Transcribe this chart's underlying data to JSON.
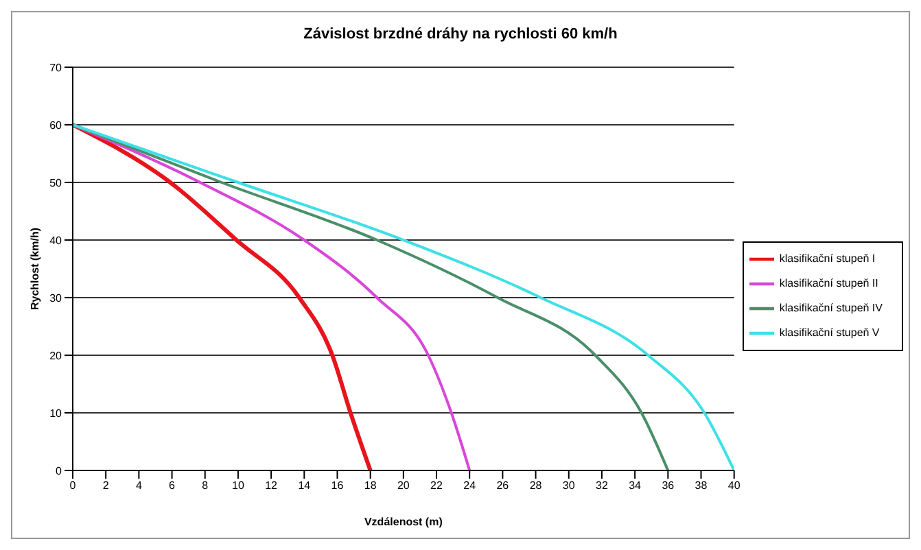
{
  "chart_data": {
    "type": "line",
    "title": "Závislost brzdné dráhy na rychlosti 60 km/h",
    "xlabel": "Vzdálenost (m)",
    "ylabel": "Rychlost (km/h)",
    "xlim": [
      0,
      40
    ],
    "xticks": [
      0,
      2,
      4,
      6,
      8,
      10,
      12,
      14,
      16,
      18,
      20,
      22,
      24,
      26,
      28,
      30,
      32,
      34,
      36,
      38,
      40
    ],
    "ylim": [
      0,
      70
    ],
    "yticks": [
      0,
      10,
      20,
      30,
      40,
      50,
      60,
      70
    ],
    "grid": "y",
    "legend": "right",
    "marker": "none",
    "line_style": "solid",
    "series": [
      {
        "name": "klasifikační stupeň I",
        "color": "#e8141c",
        "x": [
          0,
          5.9,
          9.9,
          13.7,
          15.7,
          16.8,
          18
        ],
        "values": [
          60,
          50,
          40,
          30,
          20,
          10,
          0
        ]
      },
      {
        "name": "klasifikační stupeň II",
        "color": "#d946d9",
        "x": [
          0,
          7.7,
          14,
          18.4,
          21.5,
          22.9,
          24
        ],
        "values": [
          60,
          50,
          40,
          30,
          20,
          10,
          0
        ]
      },
      {
        "name": "klasifikační stupeň IV",
        "color": "#4a8f6a",
        "x": [
          0,
          9,
          18.4,
          25.7,
          31.6,
          34.4,
          36
        ],
        "values": [
          60,
          50,
          40,
          30,
          20,
          10,
          0
        ]
      },
      {
        "name": "klasifikační stupeň V",
        "color": "#3ee0e6",
        "x": [
          0,
          10,
          20,
          28.3,
          34.8,
          38.2,
          40
        ],
        "values": [
          60,
          50,
          40,
          30,
          20,
          10,
          0
        ]
      }
    ]
  }
}
